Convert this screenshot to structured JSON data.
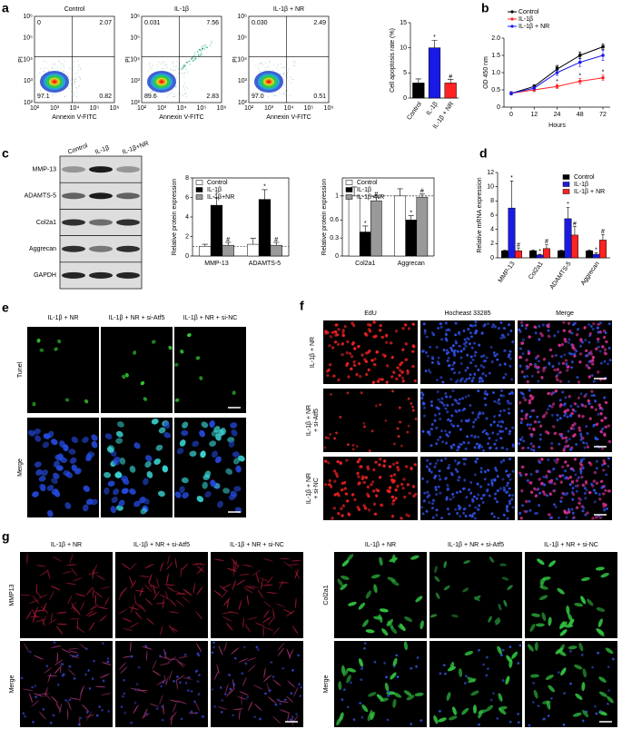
{
  "panel_labels": [
    "a",
    "b",
    "c",
    "d",
    "e",
    "f",
    "g"
  ],
  "flow": {
    "ylabel": "PI",
    "xlabel": "Annexin V-FITC",
    "ticks": [
      "10²",
      "10³",
      "10⁴",
      "10⁵",
      "10⁶"
    ],
    "plots": [
      {
        "title": "Control",
        "quadrants": [
          "0",
          "2.07",
          "97.1",
          "0.82"
        ]
      },
      {
        "title": "IL-1β",
        "quadrants": [
          "0.031",
          "7.56",
          "89.6",
          "2.83"
        ]
      },
      {
        "title": "IL-1β + NR",
        "quadrants": [
          "0.030",
          "2.49",
          "97.0",
          "0.51"
        ]
      }
    ]
  },
  "western": {
    "columns": [
      "Control",
      "IL-1β",
      "IL-1β+NR"
    ],
    "rows": [
      "MMP-13",
      "ADAMTS-5",
      "Col2a1",
      "Aggrecan",
      "GAPDH"
    ]
  },
  "panel_e": {
    "columns": [
      "IL-1β + NR",
      "IL-1β + NR + si-Atf5",
      "IL-1β + NR + si-NC"
    ],
    "rows": [
      "Tunel",
      "Merge"
    ]
  },
  "panel_f": {
    "columns": [
      "EdU",
      "Hocheast 33285",
      "Merge"
    ],
    "rows": [
      [
        "IL-1β + NR"
      ],
      [
        "IL-1β + NR",
        "+ si-Atf5"
      ],
      [
        "IL-1β + NR",
        "+ si-NC"
      ]
    ]
  },
  "panel_g": {
    "columns": [
      "IL-1β + NR",
      "IL-1β + NR + si-Atf5",
      "IL-1β + NR + si-NC"
    ],
    "left_rows": [
      "MMP13",
      "Merge"
    ],
    "right_rows": [
      "Col2a1",
      "Merge"
    ]
  },
  "chart_data": [
    {
      "type": "bar",
      "ylabel": "Cell apoptosis rate (%)",
      "categories": [
        "Control",
        "IL-1β",
        "IL-1β + NR"
      ],
      "series": [
        {
          "colors": [
            "#000000",
            "#1a1ae6",
            "#ff2222"
          ],
          "values": [
            3,
            10,
            3
          ],
          "errors": [
            0.8,
            1.5,
            0.7
          ],
          "annotations": [
            null,
            "*",
            "#"
          ]
        }
      ],
      "ylim": [
        0,
        15
      ],
      "yticks": [
        0,
        5,
        10,
        15
      ],
      "rotate_labels": true
    },
    {
      "type": "line",
      "ylabel": "OD 450 nm",
      "xlabel": "Hours",
      "categories": [
        "0",
        "12",
        "24",
        "48",
        "72"
      ],
      "series": [
        {
          "name": "Control",
          "color": "#000000",
          "values": [
            0.4,
            0.6,
            1.1,
            1.5,
            1.75
          ],
          "errors": [
            0.05,
            0.05,
            0.08,
            0.1,
            0.08
          ],
          "annotations": [
            null,
            null,
            null,
            null,
            null
          ]
        },
        {
          "name": "IL-1β",
          "color": "#ff2222",
          "values": [
            0.4,
            0.5,
            0.6,
            0.75,
            0.85
          ],
          "errors": [
            0.05,
            0.05,
            0.06,
            0.08,
            0.08
          ],
          "annotations": [
            null,
            null,
            "*",
            "*",
            "*"
          ]
        },
        {
          "name": "IL-1β + NR",
          "color": "#1a1ae6",
          "values": [
            0.4,
            0.55,
            1.0,
            1.3,
            1.5
          ],
          "errors": [
            0.05,
            0.05,
            0.08,
            0.12,
            0.15
          ],
          "annotations": [
            null,
            null,
            "#",
            "#",
            "#"
          ]
        }
      ],
      "ylim": [
        0,
        2
      ],
      "yticks": [
        0,
        0.5,
        {
          "value": 1,
          "label": "1.0"
        },
        1.5,
        {
          "value": 2,
          "label": "2.0"
        }
      ],
      "legend": "upper left"
    },
    {
      "type": "bar",
      "ylabel": "Relative protein expression",
      "categories": [
        "MMP-13",
        "ADAMTS-5"
      ],
      "series": [
        {
          "name": "Control",
          "color": "#ffffff",
          "values": [
            1,
            1.2
          ],
          "errors": [
            0.2,
            0.6
          ],
          "annotations": [
            null,
            null
          ]
        },
        {
          "name": "IL-1β",
          "color": "#000000",
          "values": [
            5.2,
            5.8
          ],
          "errors": [
            0.8,
            1.0
          ],
          "annotations": [
            "*",
            "*"
          ]
        },
        {
          "name": "IL-1β+NR",
          "color": "#999999",
          "values": [
            1.1,
            1.1
          ],
          "errors": [
            0.3,
            0.3
          ],
          "annotations": [
            "#",
            "#"
          ]
        }
      ],
      "ylim": [
        0,
        8
      ],
      "yticks": [
        0,
        2,
        4,
        6,
        8
      ],
      "refline": 1,
      "frame": true,
      "legend": "upper left"
    },
    {
      "type": "bar",
      "ylabel": "Relative protein expression",
      "categories": [
        "Col2a1",
        "Aggrecan"
      ],
      "series": [
        {
          "name": "Control",
          "color": "#ffffff",
          "values": [
            1,
            1
          ],
          "errors": [
            0.15,
            0.12
          ],
          "annotations": [
            null,
            null
          ]
        },
        {
          "name": "IL-1β",
          "color": "#000000",
          "values": [
            0.4,
            0.6
          ],
          "errors": [
            0.1,
            0.07
          ],
          "annotations": [
            "*",
            "*"
          ]
        },
        {
          "name": "IL-1β+NR",
          "color": "#999999",
          "values": [
            0.92,
            0.98
          ],
          "errors": [
            0.06,
            0.05
          ],
          "annotations": [
            "#",
            "#"
          ]
        }
      ],
      "ylim": [
        0,
        1.3
      ],
      "yticks": [
        0,
        0.3,
        0.6,
        1
      ],
      "refline": 1,
      "frame": true,
      "legend": "upper left"
    },
    {
      "type": "bar",
      "ylabel": "Relative mRNA expression",
      "categories": [
        "MMP-13",
        "Col2a1",
        "ADAMTS-5",
        "Aggrecan"
      ],
      "series": [
        {
          "name": "Control",
          "color": "#000000",
          "values": [
            1,
            1,
            1,
            1
          ],
          "errors": [
            0.1,
            0.1,
            0.1,
            0.1
          ],
          "annotations": [
            null,
            null,
            null,
            null
          ]
        },
        {
          "name": "IL-1β",
          "color": "#1a1ae6",
          "values": [
            7,
            0.4,
            5.5,
            0.5
          ],
          "errors": [
            3.8,
            0.1,
            1.6,
            0.2
          ],
          "annotations": [
            "*",
            "*",
            "*",
            "*"
          ]
        },
        {
          "name": "IL-1β + NR",
          "color": "#ff2222",
          "values": [
            1,
            1.3,
            3.2,
            2.5
          ],
          "errors": [
            0.4,
            0.6,
            1.2,
            0.8
          ],
          "annotations": [
            "#",
            "#",
            "#",
            "#"
          ]
        }
      ],
      "ylim": [
        0,
        12
      ],
      "yticks": [
        0,
        2,
        4,
        6,
        8,
        10,
        12
      ],
      "rotate_labels": true,
      "legend": "upper right"
    }
  ]
}
